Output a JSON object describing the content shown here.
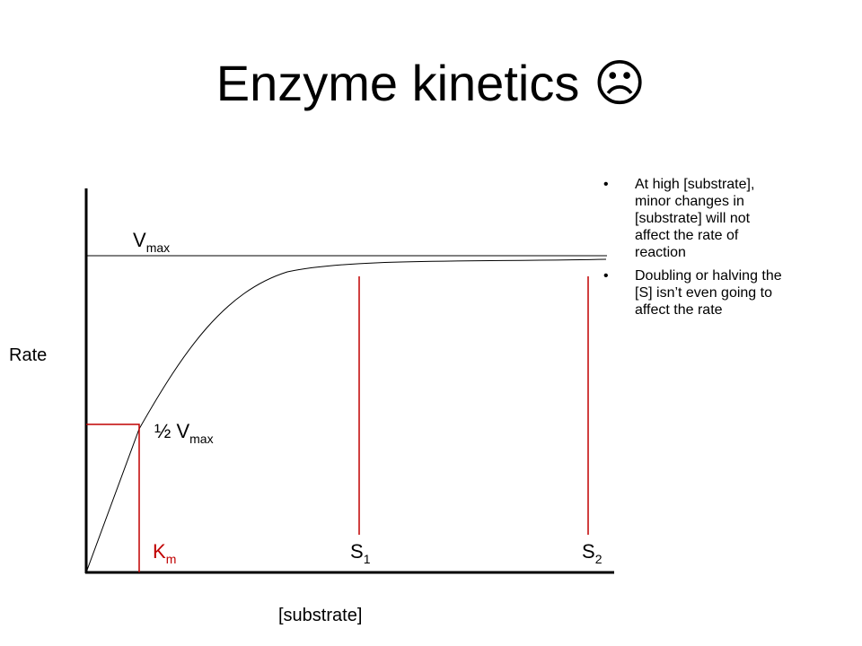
{
  "title": "Enzyme kinetics ☹",
  "diagram": {
    "y_axis_label": "Rate",
    "x_axis_label": "[substrate]",
    "vmax": {
      "base": "V",
      "sub": "max"
    },
    "half_vmax": {
      "base": "½ V",
      "sub": "max"
    },
    "km": {
      "base": "K",
      "sub": "m"
    },
    "s1": {
      "base": "S",
      "sub": "1"
    },
    "s2": {
      "base": "S",
      "sub": "2"
    }
  },
  "bullets": [
    "At high [substrate], minor changes in [substrate] will not affect the rate of reaction",
    "Doubling or halving the [S] isn’t even going to affect the rate"
  ]
}
